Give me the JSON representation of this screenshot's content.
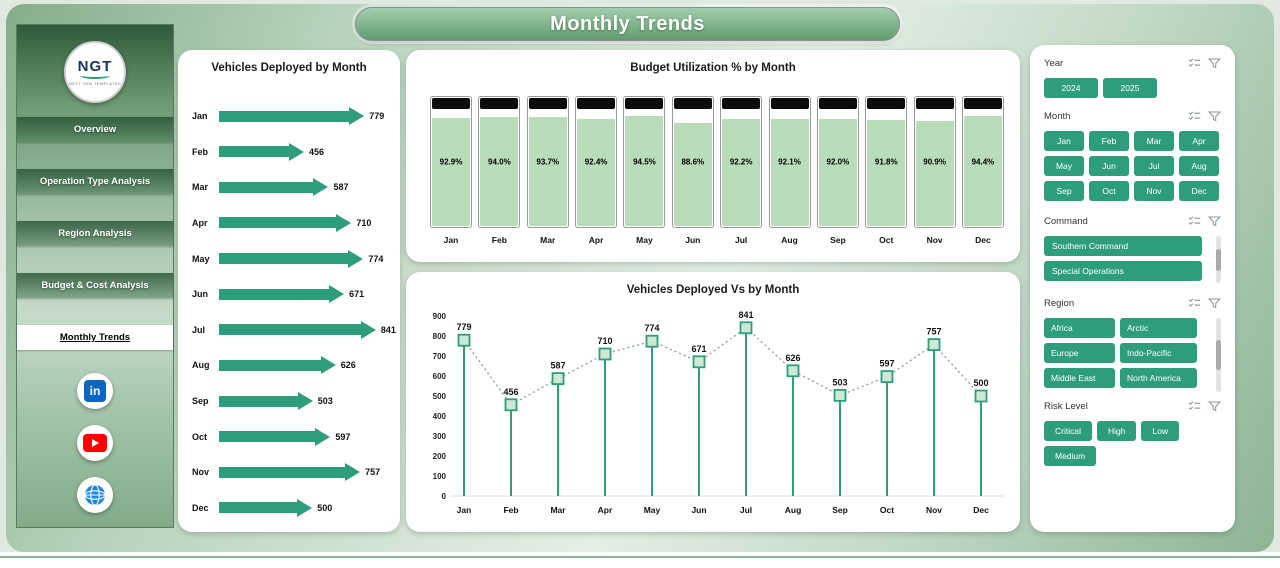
{
  "colors": {
    "accent": "#2E9D7B",
    "bar_fill": "#B9DCBA",
    "bar_cap": "#0B0B0B",
    "marker_fill": "#CFE8D6"
  },
  "header": {
    "title": "Monthly Trends"
  },
  "sidebar": {
    "logo": {
      "text": "NGT",
      "subtext": "NEXT GEN TEMPLATES"
    },
    "items": [
      {
        "label": "Overview",
        "active": false
      },
      {
        "label": "Operation Type Analysis",
        "active": false
      },
      {
        "label": "Region Analysis",
        "active": false
      },
      {
        "label": "Budget & Cost Analysis",
        "active": false
      },
      {
        "label": "Monthly Trends",
        "active": true
      }
    ],
    "social": [
      "linkedin-icon",
      "youtube-icon",
      "website-icon"
    ]
  },
  "icons": {
    "linkedin_glyph": "in",
    "filter_section_icons": [
      "multi-select-icon",
      "filter-icon"
    ]
  },
  "chart_data": [
    {
      "type": "bar",
      "orientation": "horizontal",
      "title": "Vehicles Deployed by Month",
      "categories": [
        "Jan",
        "Feb",
        "Mar",
        "Apr",
        "May",
        "Jun",
        "Jul",
        "Aug",
        "Sep",
        "Oct",
        "Nov",
        "Dec"
      ],
      "values": [
        779,
        456,
        587,
        710,
        774,
        671,
        841,
        626,
        503,
        597,
        757,
        500
      ],
      "xlim": [
        0,
        900
      ]
    },
    {
      "type": "bar",
      "orientation": "vertical",
      "title": "Budget Utilization % by Month",
      "categories": [
        "Jan",
        "Feb",
        "Mar",
        "Apr",
        "May",
        "Jun",
        "Jul",
        "Aug",
        "Sep",
        "Oct",
        "Nov",
        "Dec"
      ],
      "values": [
        92.9,
        94.0,
        93.7,
        92.4,
        94.5,
        88.6,
        92.2,
        92.1,
        92.0,
        91.8,
        90.9,
        94.4
      ],
      "labels": [
        "92.9%",
        "94.0%",
        "93.7%",
        "92.4%",
        "94.5%",
        "88.6%",
        "92.2%",
        "92.1%",
        "92.0%",
        "91.8%",
        "90.9%",
        "94.4%"
      ],
      "ylim": [
        0,
        100
      ]
    },
    {
      "type": "line",
      "style": "lollipop",
      "title": "Vehicles Deployed Vs  by Month",
      "categories": [
        "Jan",
        "Feb",
        "Mar",
        "Apr",
        "May",
        "Jun",
        "Jul",
        "Aug",
        "Sep",
        "Oct",
        "Nov",
        "Dec"
      ],
      "values": [
        779,
        456,
        587,
        710,
        774,
        671,
        841,
        626,
        503,
        597,
        757,
        500
      ],
      "ylim": [
        0,
        900
      ],
      "yticks": [
        0,
        100,
        200,
        300,
        400,
        500,
        600,
        700,
        800,
        900
      ]
    }
  ],
  "filters": [
    {
      "label": "Year",
      "options": [
        "2024",
        "2025"
      ],
      "scrollbar": false
    },
    {
      "label": "Month",
      "options": [
        "Jan",
        "Feb",
        "Mar",
        "Apr",
        "May",
        "Jun",
        "Jul",
        "Aug",
        "Sep",
        "Oct",
        "Nov",
        "Dec"
      ],
      "scrollbar": false
    },
    {
      "label": "Command",
      "options": [
        "Southern Command",
        "Special Operations"
      ],
      "scrollbar": true
    },
    {
      "label": "Region",
      "options": [
        "Africa",
        "Arctic",
        "Europe",
        "Indo-Pacific",
        "Middle East",
        "North America"
      ],
      "scrollbar": true
    },
    {
      "label": "Risk Level",
      "options": [
        "Critical",
        "High",
        "Low",
        "Medium"
      ],
      "scrollbar": false
    }
  ]
}
